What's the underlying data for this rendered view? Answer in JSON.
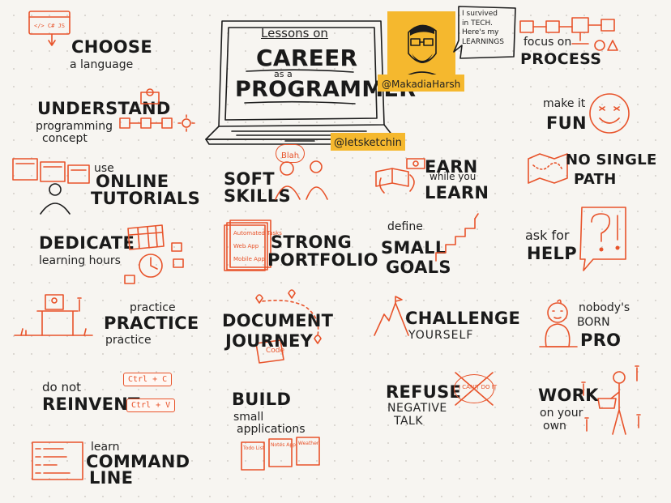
{
  "header": {
    "lessons_on": "Lessons on",
    "career": "CAREER",
    "as_a": "as a",
    "programmer": "PROGRAMMER",
    "letsketchin": "@letsketchin",
    "author_handle": "@MakadiaHarsh",
    "speech": [
      "I survived",
      "in TECH.",
      "Here's my",
      "LEARNINGS"
    ]
  },
  "colors": {
    "accent": "#e8532a",
    "yellow": "#f5b82e",
    "ink": "#1c1c1c",
    "paper": "#f7f5f1"
  },
  "tips": {
    "choose": {
      "big": "CHOOSE",
      "small": "a language",
      "icon": "code-window-icon"
    },
    "understand": {
      "big": "UNDERSTAND",
      "small1": "programming",
      "small2": "concept",
      "icon": "flow-icon"
    },
    "online": {
      "pre": "use",
      "big1": "ONLINE",
      "big2": "TUTORIALS",
      "icon": "screens-person-icon"
    },
    "dedicate": {
      "big": "DEDICATE",
      "small": "learning hours",
      "icon": "calendar-clock-icon"
    },
    "practice": {
      "small1": "practice",
      "big": "PRACTICE",
      "small2": "practice",
      "icon": "desk-icon"
    },
    "reinvent": {
      "small": "do not",
      "big": "REINVENT",
      "key1": "Ctrl + C",
      "key2": "Ctrl + V"
    },
    "command": {
      "small": "learn",
      "big1": "COMMAND",
      "big2": "LINE",
      "icon": "terminal-icon"
    },
    "soft": {
      "big1": "SOFT",
      "big2": "SKILLS",
      "bubble": "Blah",
      "icon": "two-people-icon"
    },
    "portfolio": {
      "big1": "STRONG",
      "big2": "PORTFOLIO",
      "items": [
        "Automated Tasks",
        "Web App",
        "Mobile App"
      ]
    },
    "document": {
      "big1": "DOCUMENT",
      "big2": "JOURNEY",
      "note": "Code",
      "icon": "map-pin-icon"
    },
    "build": {
      "big": "BUILD",
      "small1": "small",
      "small2": "applications",
      "cards": [
        "Todo List",
        "Notes App",
        "Weather"
      ]
    },
    "earn": {
      "big1": "EARN",
      "small": "while you",
      "big2": "LEARN",
      "icon": "book-cash-icon"
    },
    "goals": {
      "small": "define",
      "big1": "SMALL",
      "big2": "GOALS",
      "icon": "stairs-icon"
    },
    "challenge": {
      "big": "CHALLENGE",
      "small": "YOURSELF",
      "icon": "mountain-icon"
    },
    "refuse": {
      "big": "REFUSE",
      "small1": "NEGATIVE",
      "small2": "TALK",
      "crossed": "I CAN'T DO IT"
    },
    "process": {
      "small": "focus on",
      "big": "PROCESS",
      "icon": "flowchart-icon"
    },
    "fun": {
      "small": "make it",
      "big": "FUN",
      "icon": "smiley-icon"
    },
    "single": {
      "big1": "NO SINGLE",
      "big2": "PATH",
      "icon": "map-icon"
    },
    "help": {
      "small": "ask for",
      "big": "HELP",
      "icon": "question-bubble-icon"
    },
    "born": {
      "small1": "nobody's",
      "small2": "BORN",
      "big": "PRO",
      "icon": "baby-icon"
    },
    "work": {
      "big": "WORK",
      "small1": "on your",
      "small2": "own",
      "icon": "person-laptop-icon"
    }
  }
}
